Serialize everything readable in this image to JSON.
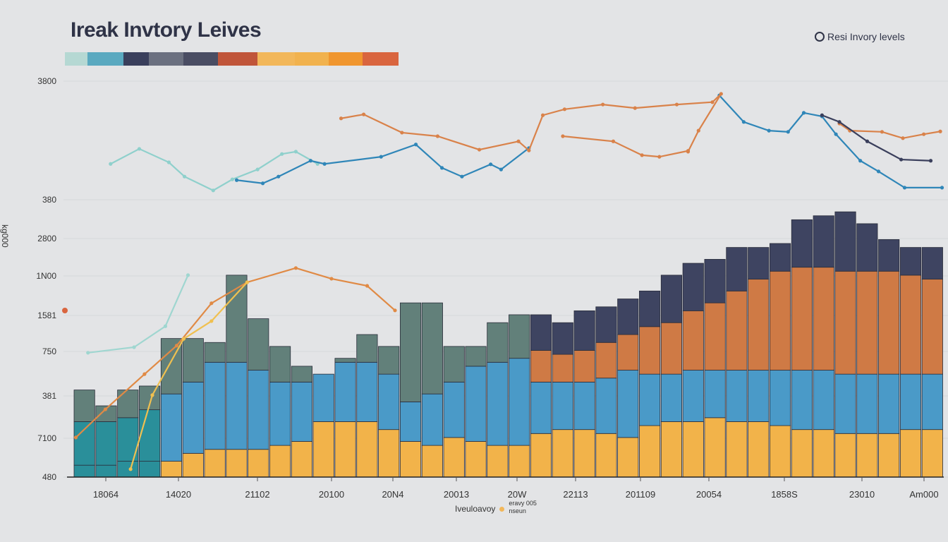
{
  "chart_data": {
    "type": "bar",
    "title": "Ireak Invtory Leives",
    "legend_label": "Resi Invory levels",
    "ylabel": "kg000",
    "xlabel": "Iveuloavoy",
    "bottom_legend": {
      "line1": "eravy 005",
      "line2": "nseun"
    },
    "legend_placement": "top-right",
    "grid": true,
    "ylim": [
      0,
      100
    ],
    "xlim": [
      0,
      100
    ],
    "y_tick_labels": [
      "3800",
      "380",
      "2800",
      "1N00",
      "1581",
      "750",
      "381",
      "7100",
      "480"
    ],
    "x_tick_labels": [
      "18064",
      "14020",
      "21102",
      "20100",
      "20N4",
      "20013",
      "20W",
      "22113",
      "201109",
      "20054",
      "1858S",
      "23010",
      "Am000"
    ],
    "swatch_colors": [
      "#b5d8d3",
      "#5aa9c0",
      "#3a3f5c",
      "#6b7080",
      "#4a4d63",
      "#c0553a",
      "#f2b75a",
      "#f1b24e",
      "#f0962f",
      "#d9653f"
    ],
    "stacked_bars": {
      "yellow": [
        3,
        3,
        4,
        4,
        4,
        6,
        7,
        7,
        7,
        8,
        9,
        14,
        14,
        14,
        12,
        9,
        8,
        10,
        9,
        8,
        8,
        11,
        12,
        12,
        11,
        10,
        13,
        14,
        14,
        15,
        14,
        14,
        13,
        12,
        12,
        11,
        11,
        11,
        12,
        12
      ],
      "blue_top": [
        14,
        14,
        15,
        17,
        21,
        24,
        29,
        29,
        27,
        24,
        24,
        26,
        29,
        29,
        26,
        19,
        21,
        24,
        28,
        29,
        30,
        24,
        24,
        24,
        25,
        27,
        26,
        26,
        27,
        27,
        27,
        27,
        27,
        27,
        27,
        26,
        26,
        26,
        26,
        26
      ],
      "orange_top": [
        null,
        null,
        null,
        null,
        null,
        null,
        null,
        null,
        null,
        null,
        null,
        null,
        null,
        null,
        null,
        null,
        null,
        null,
        null,
        null,
        null,
        32,
        31,
        32,
        34,
        36,
        38,
        39,
        42,
        44,
        47,
        50,
        52,
        53,
        53,
        52,
        52,
        52,
        51,
        50
      ],
      "total": [
        22,
        18,
        22,
        23,
        35,
        35,
        34,
        51,
        40,
        33,
        28,
        26,
        30,
        36,
        33,
        44,
        44,
        33,
        33,
        39,
        41,
        41,
        39,
        42,
        43,
        45,
        47,
        51,
        54,
        55,
        58,
        58,
        59,
        65,
        66,
        67,
        64,
        60,
        58,
        58
      ]
    },
    "colors": {
      "yellow": "#f2b34a",
      "blue": "#4a9ac8",
      "orange": "#cf7a45",
      "navy": "#3e4461",
      "sage": "#62807a",
      "teal": "#2a8f9a"
    },
    "lines": [
      {
        "color": "#8fd0cc",
        "points": [
          [
            4.2,
            79.1
          ],
          [
            7.5,
            82.9
          ],
          [
            10.9,
            79.5
          ],
          [
            12.7,
            75.9
          ],
          [
            16,
            72.4
          ],
          [
            18.2,
            75.2
          ],
          [
            21.1,
            77.7
          ],
          [
            23.9,
            81.6
          ],
          [
            25.5,
            82.2
          ],
          [
            28,
            79.1
          ]
        ]
      },
      {
        "color": "#2f86b8",
        "points": [
          [
            18.7,
            75
          ],
          [
            21.7,
            74.2
          ],
          [
            23.5,
            75.9
          ],
          [
            27.2,
            79.9
          ],
          [
            28.8,
            79.1
          ],
          [
            35.3,
            80.9
          ],
          [
            39.3,
            84
          ],
          [
            42.3,
            78.1
          ],
          [
            44.6,
            75.9
          ],
          [
            47.9,
            79
          ],
          [
            49.1,
            77.7
          ],
          [
            52.3,
            83.1
          ]
        ]
      },
      {
        "color": "#2f86b8",
        "points": [
          [
            74.2,
            96.4
          ],
          [
            77,
            89.7
          ],
          [
            79.9,
            87.5
          ],
          [
            82.1,
            87.2
          ],
          [
            83.9,
            92
          ],
          [
            86,
            91.1
          ],
          [
            87.6,
            86.6
          ],
          [
            90.4,
            79.9
          ],
          [
            92.5,
            77.2
          ],
          [
            95.5,
            73.1
          ],
          [
            99.8,
            73.1
          ]
        ]
      },
      {
        "color": "#d9824a",
        "points": [
          [
            30.7,
            90.6
          ],
          [
            33.3,
            91.6
          ],
          [
            37.7,
            87
          ],
          [
            41.8,
            86.1
          ],
          [
            46.6,
            82.7
          ],
          [
            51.1,
            84.8
          ],
          [
            52.3,
            82.5
          ],
          [
            53.9,
            91.4
          ],
          [
            56.4,
            92.9
          ],
          [
            60.8,
            94.1
          ],
          [
            64.5,
            93.2
          ],
          [
            69.3,
            94.1
          ],
          [
            73.4,
            94.7
          ],
          [
            74.4,
            96.8
          ],
          [
            71.8,
            87.5
          ],
          [
            70.6,
            82.2
          ]
        ]
      },
      {
        "color": "#d9824a",
        "points": [
          [
            56.2,
            86.1
          ],
          [
            62,
            84.8
          ],
          [
            65.3,
            81.3
          ],
          [
            67.3,
            80.9
          ],
          [
            70.6,
            82.4
          ]
        ]
      },
      {
        "color": "#d9824a",
        "points": [
          [
            88,
            89.3
          ],
          [
            89.2,
            87.5
          ],
          [
            92.9,
            87.2
          ],
          [
            95.3,
            85.6
          ],
          [
            97.7,
            86.6
          ],
          [
            99.6,
            87.3
          ]
        ]
      },
      {
        "color": "#3a3f5c",
        "points": [
          [
            86,
            91.4
          ],
          [
            88,
            89.7
          ],
          [
            91.2,
            84.8
          ],
          [
            95.1,
            80.2
          ],
          [
            98.5,
            79.9
          ]
        ]
      },
      {
        "color": "#9fd6d0",
        "points": [
          [
            1.6,
            31.4
          ],
          [
            6.9,
            32.8
          ],
          [
            10.5,
            38.1
          ],
          [
            13.1,
            51
          ]
        ]
      },
      {
        "color": "#e08a45",
        "points": [
          [
            0.2,
            10
          ],
          [
            3.6,
            17.1
          ],
          [
            8.1,
            26
          ],
          [
            11.8,
            33.2
          ],
          [
            15.8,
            43.9
          ],
          [
            19.9,
            49.2
          ],
          [
            25.5,
            52.8
          ],
          [
            29.6,
            50.1
          ],
          [
            33.7,
            48.3
          ],
          [
            36.9,
            42.1
          ]
        ]
      },
      {
        "color": "#f0c050",
        "points": [
          [
            6.5,
            2
          ],
          [
            9,
            20.7
          ],
          [
            12.6,
            34.9
          ],
          [
            15.8,
            39.4
          ],
          [
            19.9,
            49.2
          ]
        ]
      }
    ]
  }
}
